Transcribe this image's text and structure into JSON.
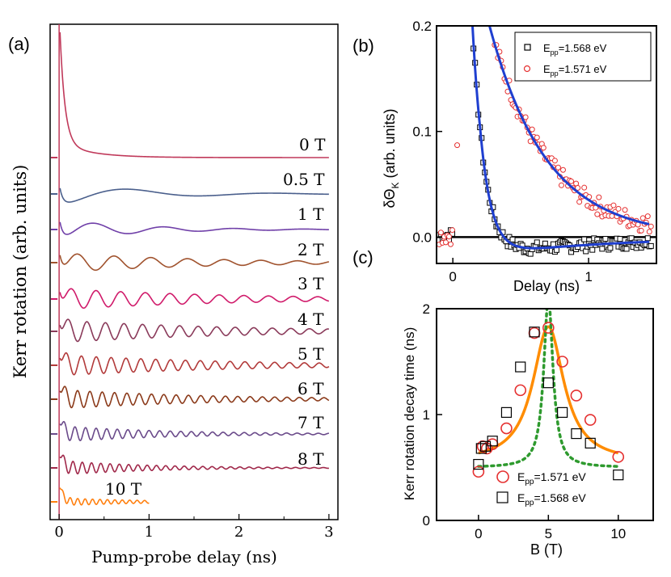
{
  "panel_a": {
    "label": "(a)",
    "chart_data": {
      "type": "line",
      "xlabel": "Pump-probe delay (ns)",
      "ylabel": "Kerr rotation (arb. units)",
      "xlim": [
        -0.1,
        3.1
      ],
      "xticks": [
        "0",
        "1",
        "2",
        "3"
      ],
      "xtick_values": [
        0,
        1,
        2,
        3
      ],
      "series": [
        {
          "name": "0 T",
          "field": 0,
          "freq": 0,
          "tau": 0.2,
          "amp": 18,
          "color": "#c0395a",
          "end": 3.0
        },
        {
          "name": "0.5 T",
          "field": 0.5,
          "freq": 0.62,
          "tau": 0.9,
          "amp": 14,
          "color": "#4a5f8c",
          "end": 3.0
        },
        {
          "name": "1 T",
          "field": 1,
          "freq": 1.28,
          "tau": 0.9,
          "amp": 12,
          "color": "#6f3fa8",
          "end": 3.0
        },
        {
          "name": "2 T",
          "field": 2,
          "freq": 2.45,
          "tau": 1.6,
          "amp": 12,
          "color": "#a0522d",
          "end": 3.0
        },
        {
          "name": "3 T",
          "field": 3,
          "freq": 3.65,
          "tau": 1.9,
          "amp": 13,
          "color": "#d01a6a",
          "end": 3.0
        },
        {
          "name": "4 T",
          "field": 4,
          "freq": 4.85,
          "tau": 1.9,
          "amp": 14,
          "color": "#8a3a5a",
          "end": 3.0
        },
        {
          "name": "5 T",
          "field": 5,
          "freq": 6.05,
          "tau": 1.9,
          "amp": 13,
          "color": "#b23a3a",
          "end": 3.0
        },
        {
          "name": "6 T",
          "field": 6,
          "freq": 7.3,
          "tau": 1.6,
          "amp": 12,
          "color": "#8b3a1a",
          "end": 3.0
        },
        {
          "name": "7 T",
          "field": 7,
          "freq": 8.5,
          "tau": 1.2,
          "amp": 10,
          "color": "#6a4a8a",
          "end": 3.0
        },
        {
          "name": "8 T",
          "field": 8,
          "freq": 9.7,
          "tau": 1.0,
          "amp": 9,
          "color": "#a0284a",
          "end": 3.0
        },
        {
          "name": "10 T",
          "field": 10,
          "freq": 12.1,
          "tau": 0.9,
          "amp": 5,
          "color": "#ff7f0e",
          "end": 1.0
        }
      ]
    }
  },
  "panel_b": {
    "label": "(b)",
    "chart_data": {
      "type": "scatter",
      "xlabel": "Delay (ns)",
      "ylabel_main": "δΘ",
      "ylabel_sub": "K",
      "ylabel_rest": " (arb. units)",
      "xlim": [
        -0.12,
        1.5
      ],
      "ylim": [
        -0.025,
        0.2
      ],
      "xticks": [
        "0",
        "1"
      ],
      "xtick_values": [
        0,
        1
      ],
      "yticks": [
        "0.0",
        "0.1",
        "0.2"
      ],
      "ytick_values": [
        0.0,
        0.1,
        0.2
      ],
      "legend": [
        {
          "label_main": "E",
          "label_sub": "pp",
          "label_rest": "=1.568 eV",
          "marker": "square",
          "color": "#000000"
        },
        {
          "label_main": "E",
          "label_sub": "pp",
          "label_rest": "=1.571 eV",
          "marker": "circle",
          "color": "#e53030"
        }
      ],
      "series": [
        {
          "name": "Epp=1.568 eV",
          "marker": "square",
          "color": "#000000",
          "fit": {
            "A": 1.02,
            "tau": 0.085,
            "t0": 0.0,
            "B": 0.018,
            "tau2": 0.55
          }
        },
        {
          "name": "Epp=1.571 eV",
          "marker": "circle",
          "color": "#e53030",
          "fit": {
            "A": 0.26,
            "tau": 0.42,
            "t0": 0.16
          }
        }
      ],
      "fit_color": "#1f3fd0"
    }
  },
  "panel_c": {
    "label": "(c)",
    "chart_data": {
      "type": "scatter",
      "xlabel": "B (T)",
      "ylabel": "Kerr rotation decay time (ns)",
      "xlim": [
        -3,
        12.5
      ],
      "ylim": [
        0,
        2
      ],
      "xticks": [
        "0",
        "5",
        "10"
      ],
      "xtick_values": [
        0,
        5,
        10
      ],
      "yticks": [
        "0",
        "1",
        "2"
      ],
      "ytick_values": [
        0,
        1,
        2
      ],
      "legend": [
        {
          "label_main": "E",
          "label_sub": "pp",
          "label_rest": "=1.571 eV",
          "marker": "circle",
          "color": "#e53030"
        },
        {
          "label_main": "E",
          "label_sub": "pp",
          "label_rest": "=1.568 eV",
          "marker": "square",
          "color": "#000000"
        }
      ],
      "series": [
        {
          "name": "Epp=1.571 eV",
          "marker": "circle",
          "color": "#e53030",
          "x": [
            0,
            0.3,
            0.6,
            1,
            2,
            3,
            4,
            5,
            6,
            7,
            8,
            10
          ],
          "y": [
            0.46,
            0.7,
            0.68,
            0.72,
            0.87,
            1.23,
            1.77,
            1.82,
            1.5,
            1.18,
            0.95,
            0.6
          ]
        },
        {
          "name": "Epp=1.568 eV",
          "marker": "square",
          "color": "#000000",
          "x": [
            0,
            0.2,
            0.5,
            1,
            2,
            3,
            4,
            5,
            6,
            7,
            8,
            10
          ],
          "y": [
            0.53,
            0.68,
            0.7,
            0.75,
            1.02,
            1.45,
            1.78,
            1.3,
            1.02,
            0.82,
            0.73,
            0.43
          ]
        }
      ],
      "fits": [
        {
          "name": "Lorentzian fit 1.571 eV",
          "color": "#ff8c00",
          "style": "solid",
          "x0": 5,
          "w": 2.7,
          "base": 0.55,
          "A": 1.28,
          "xmin": 0,
          "xmax": 10
        },
        {
          "name": "Lorentzian fit 1.568 eV",
          "color": "#2e9a2e",
          "style": "dashed",
          "x0": 5,
          "w": 0.8,
          "base": 0.5,
          "A": 1.6,
          "xmin": 0,
          "xmax": 10
        }
      ]
    }
  }
}
